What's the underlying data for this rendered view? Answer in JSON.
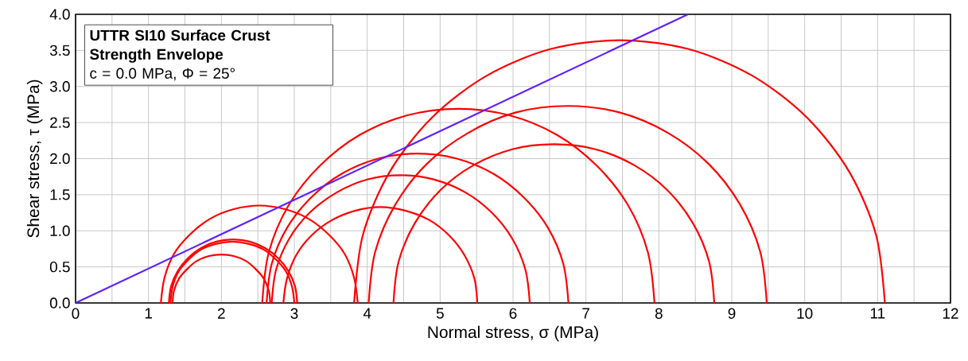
{
  "chart_data": {
    "type": "line",
    "title": "UTTR SI10 Surface Crust Strength Envelope",
    "annotations": [
      "c = 0.0 MPa, Φ = 25°"
    ],
    "xlabel": "Normal stress, σ (MPa)",
    "ylabel": "Shear stress, τ (MPa)",
    "xlim": [
      0,
      12
    ],
    "ylim": [
      0,
      4
    ],
    "xticks": [
      0,
      {
        "value": 0.5,
        "label": null
      },
      1,
      {
        "value": 1.5,
        "label": null
      },
      2,
      {
        "value": 2.5,
        "label": null
      },
      3,
      {
        "value": 3.5,
        "label": null
      },
      4,
      {
        "value": 4.5,
        "label": null
      },
      5,
      {
        "value": 5.5,
        "label": null
      },
      6,
      {
        "value": 6.5,
        "label": null
      },
      7,
      {
        "value": 7.5,
        "label": null
      },
      8,
      {
        "value": 8.5,
        "label": null
      },
      9,
      {
        "value": 9.5,
        "label": null
      },
      10,
      {
        "value": 10.5,
        "label": null
      },
      11,
      {
        "value": 11.5,
        "label": null
      },
      12
    ],
    "yticks": [
      {
        "value": 0,
        "label": "0.0"
      },
      0.5,
      {
        "value": 1,
        "label": "1.0"
      },
      1.5,
      {
        "value": 2,
        "label": "2.0"
      },
      2.5,
      {
        "value": 3,
        "label": "3.0"
      },
      3.5,
      {
        "value": 4,
        "label": "4.0"
      }
    ],
    "grid": true,
    "marker": "none",
    "line_style": "solid",
    "series": [
      {
        "color": "#ff0000",
        "x": [
          2.67,
          2.65,
          2.58,
          2.47,
          2.34,
          2.17,
          2.0,
          1.83,
          1.66,
          1.53,
          1.42,
          1.35,
          1.33
        ],
        "values": [
          0,
          0.17,
          0.34,
          0.47,
          0.58,
          0.65,
          0.67,
          0.65,
          0.58,
          0.47,
          0.34,
          0.17,
          0
        ]
      },
      {
        "color": "#ff0000",
        "x": [
          3.0,
          2.97,
          2.89,
          2.75,
          2.58,
          2.37,
          2.15,
          1.93,
          1.72,
          1.55,
          1.41,
          1.33,
          1.3
        ],
        "values": [
          0,
          0.22,
          0.43,
          0.6,
          0.74,
          0.82,
          0.85,
          0.82,
          0.74,
          0.6,
          0.43,
          0.22,
          0
        ]
      },
      {
        "color": "#ff0000",
        "x": [
          3.04,
          3.01,
          2.92,
          2.78,
          2.6,
          2.39,
          2.16,
          1.93,
          1.72,
          1.54,
          1.4,
          1.31,
          1.28
        ],
        "values": [
          0,
          0.23,
          0.44,
          0.62,
          0.76,
          0.85,
          0.88,
          0.85,
          0.76,
          0.62,
          0.44,
          0.23,
          0
        ]
      },
      {
        "color": "#ff0000",
        "x": [
          3.87,
          3.82,
          3.69,
          3.47,
          3.19,
          2.87,
          2.52,
          2.17,
          1.85,
          1.57,
          1.35,
          1.22,
          1.17
        ],
        "values": [
          0,
          0.35,
          0.68,
          0.95,
          1.17,
          1.3,
          1.35,
          1.3,
          1.17,
          0.95,
          0.68,
          0.35,
          0
        ]
      },
      {
        "color": "#ff0000",
        "x": [
          5.51,
          5.47,
          5.33,
          5.12,
          4.85,
          4.52,
          4.18,
          3.84,
          3.52,
          3.24,
          3.03,
          2.9,
          2.85
        ],
        "values": [
          0,
          0.34,
          0.67,
          0.94,
          1.15,
          1.28,
          1.33,
          1.28,
          1.15,
          0.94,
          0.67,
          0.34,
          0
        ]
      },
      {
        "color": "#ff0000",
        "x": [
          6.23,
          6.17,
          5.99,
          5.71,
          5.35,
          4.92,
          4.46,
          4.0,
          3.58,
          3.21,
          2.93,
          2.75,
          2.69
        ],
        "values": [
          0,
          0.46,
          0.89,
          1.25,
          1.53,
          1.71,
          1.77,
          1.71,
          1.53,
          1.25,
          0.89,
          0.46,
          0
        ]
      },
      {
        "color": "#ff0000",
        "x": [
          6.76,
          6.69,
          6.48,
          6.15,
          5.73,
          5.23,
          4.69,
          4.15,
          3.65,
          3.23,
          2.9,
          2.69,
          2.62
        ],
        "values": [
          0,
          0.54,
          1.04,
          1.46,
          1.79,
          2.0,
          2.07,
          2.0,
          1.79,
          1.46,
          1.04,
          0.54,
          0
        ]
      },
      {
        "color": "#ff0000",
        "x": [
          7.94,
          7.85,
          7.58,
          7.15,
          6.6,
          5.95,
          5.25,
          4.55,
          3.9,
          3.35,
          2.92,
          2.65,
          2.56
        ],
        "values": [
          0,
          0.7,
          1.35,
          1.9,
          2.33,
          2.6,
          2.69,
          2.6,
          2.33,
          1.9,
          1.35,
          0.7,
          0
        ]
      },
      {
        "color": "#ff0000",
        "x": [
          8.76,
          8.69,
          8.47,
          8.12,
          7.66,
          7.13,
          6.56,
          5.99,
          5.46,
          5.0,
          4.65,
          4.43,
          4.36
        ],
        "values": [
          0,
          0.57,
          1.1,
          1.56,
          1.91,
          2.13,
          2.2,
          2.13,
          1.91,
          1.56,
          1.1,
          0.57,
          0
        ]
      },
      {
        "color": "#ff0000",
        "x": [
          9.48,
          9.39,
          9.11,
          8.68,
          8.12,
          7.46,
          6.75,
          6.04,
          5.39,
          4.82,
          4.39,
          4.11,
          4.02
        ],
        "values": [
          0,
          0.71,
          1.37,
          1.93,
          2.36,
          2.64,
          2.73,
          2.64,
          2.36,
          1.93,
          1.37,
          0.71,
          0
        ]
      },
      {
        "color": "#ff0000",
        "x": [
          11.1,
          10.98,
          10.61,
          10.03,
          9.28,
          8.4,
          7.46,
          6.52,
          5.64,
          4.89,
          4.31,
          3.94,
          3.82
        ],
        "values": [
          0,
          0.94,
          1.82,
          2.57,
          3.15,
          3.52,
          3.64,
          3.52,
          3.15,
          2.57,
          1.82,
          0.94,
          0
        ]
      },
      {
        "color": "#6020ff",
        "x": [
          0,
          8.4
        ],
        "values": [
          0,
          4.0
        ]
      }
    ]
  }
}
